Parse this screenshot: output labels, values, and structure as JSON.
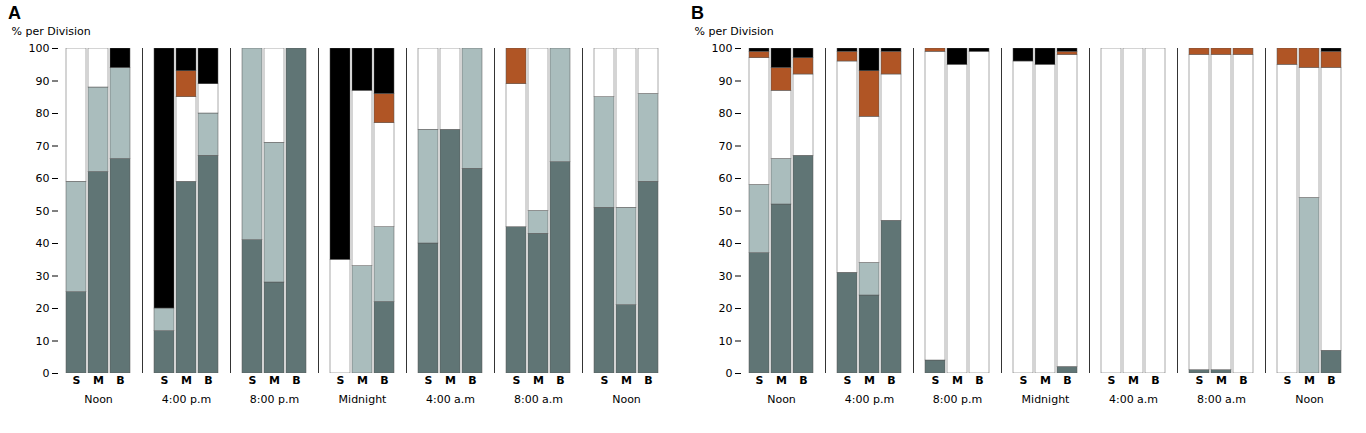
{
  "chart_data": [
    {
      "type": "bar",
      "title": "A",
      "stacked": true,
      "ylabel": "% per Division",
      "ylim": [
        0,
        100
      ],
      "yticks": [
        0,
        10,
        20,
        30,
        40,
        50,
        60,
        70,
        80,
        90,
        100
      ],
      "grid": false,
      "categories": [
        "S",
        "M",
        "B",
        "S",
        "M",
        "B",
        "S",
        "M",
        "B",
        "S",
        "M",
        "B",
        "S",
        "M",
        "B",
        "S",
        "M",
        "B",
        "S",
        "M",
        "B"
      ],
      "annotations": [
        "Noon",
        "4:00 p.m",
        "8:00 p.m",
        "Midnight",
        "4:00 a.m",
        "8:00 a.m",
        "Noon"
      ],
      "series": [
        {
          "color": "#607575",
          "values": [
            25,
            62,
            66,
            13,
            59,
            67,
            41,
            28,
            100,
            0,
            0,
            22,
            40,
            75,
            63,
            45,
            43,
            65,
            51,
            21,
            59
          ]
        },
        {
          "color": "#aabdbd",
          "values": [
            34,
            26,
            28,
            7,
            0,
            13,
            59,
            43,
            0,
            0,
            33,
            23,
            35,
            0,
            37,
            0,
            7,
            35,
            34,
            30,
            27
          ]
        },
        {
          "color": "#ffffff",
          "values": [
            41,
            12,
            0,
            0,
            26,
            9,
            0,
            29,
            0,
            35,
            54,
            32,
            25,
            25,
            0,
            44,
            50,
            0,
            15,
            49,
            14
          ]
        },
        {
          "color": "#b05525",
          "values": [
            0,
            0,
            0,
            0,
            8,
            0,
            0,
            0,
            0,
            0,
            0,
            9,
            0,
            0,
            0,
            11,
            0,
            0,
            0,
            0,
            0
          ]
        },
        {
          "color": "#000000",
          "values": [
            0,
            0,
            6,
            80,
            7,
            11,
            0,
            0,
            0,
            65,
            13,
            14,
            0,
            0,
            0,
            0,
            0,
            0,
            0,
            0,
            0
          ]
        }
      ]
    },
    {
      "type": "bar",
      "title": "B",
      "stacked": true,
      "ylabel": "% per Division",
      "ylim": [
        0,
        100
      ],
      "yticks": [
        0,
        10,
        20,
        30,
        40,
        50,
        60,
        70,
        80,
        90,
        100
      ],
      "grid": false,
      "categories": [
        "S",
        "M",
        "B",
        "S",
        "M",
        "B",
        "S",
        "M",
        "B",
        "S",
        "M",
        "B",
        "S",
        "M",
        "B",
        "S",
        "M",
        "B",
        "S",
        "M",
        "B"
      ],
      "annotations": [
        "Noon",
        "4:00 p.m",
        "8:00 p.m",
        "Midnight",
        "4:00 a.m",
        "8:00 a.m",
        "Noon"
      ],
      "series": [
        {
          "color": "#607575",
          "values": [
            37,
            52,
            67,
            31,
            24,
            47,
            4,
            0,
            0,
            0,
            0,
            2,
            0,
            0,
            0,
            1,
            1,
            0,
            0,
            0,
            7
          ]
        },
        {
          "color": "#aabdbd",
          "values": [
            21,
            14,
            0,
            0,
            10,
            0,
            0,
            0,
            0,
            0,
            0,
            0,
            0,
            0,
            0,
            0,
            0,
            0,
            0,
            54,
            0
          ]
        },
        {
          "color": "#ffffff",
          "values": [
            39,
            21,
            25,
            65,
            45,
            45,
            95,
            95,
            99,
            96,
            95,
            96,
            100,
            100,
            100,
            97,
            97,
            98,
            95,
            40,
            87
          ]
        },
        {
          "color": "#b05525",
          "values": [
            2,
            7,
            5,
            3,
            14,
            7,
            1,
            0,
            0,
            0,
            0,
            1,
            0,
            0,
            0,
            2,
            2,
            2,
            5,
            6,
            5
          ]
        },
        {
          "color": "#000000",
          "values": [
            1,
            6,
            3,
            1,
            7,
            1,
            0,
            5,
            1,
            4,
            5,
            1,
            0,
            0,
            0,
            0,
            0,
            0,
            0,
            0,
            1
          ]
        }
      ]
    }
  ]
}
